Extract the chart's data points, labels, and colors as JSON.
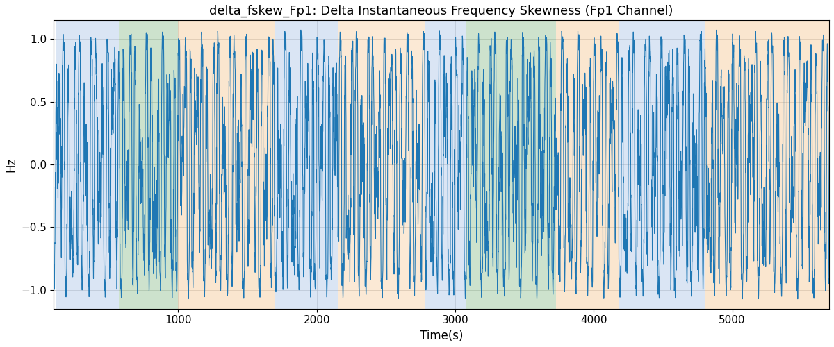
{
  "title": "delta_fskew_Fp1: Delta Instantaneous Frequency Skewness (Fp1 Channel)",
  "xlabel": "Time(s)",
  "ylabel": "Hz",
  "xlim": [
    100,
    5700
  ],
  "ylim": [
    -1.15,
    1.15
  ],
  "line_color": "#1f77b4",
  "line_width": 0.8,
  "background_color": "#ffffff",
  "grid_color": "#b0b0b0",
  "bands": [
    {
      "xmin": 120,
      "xmax": 570,
      "color": "#aec6e8",
      "alpha": 0.45
    },
    {
      "xmin": 570,
      "xmax": 1000,
      "color": "#90c090",
      "alpha": 0.45
    },
    {
      "xmin": 1000,
      "xmax": 1700,
      "color": "#f5c896",
      "alpha": 0.45
    },
    {
      "xmin": 1700,
      "xmax": 2150,
      "color": "#aec6e8",
      "alpha": 0.45
    },
    {
      "xmin": 2150,
      "xmax": 2780,
      "color": "#f5c896",
      "alpha": 0.4
    },
    {
      "xmin": 2780,
      "xmax": 3080,
      "color": "#aec6e8",
      "alpha": 0.45
    },
    {
      "xmin": 3080,
      "xmax": 3730,
      "color": "#90c090",
      "alpha": 0.45
    },
    {
      "xmin": 3730,
      "xmax": 4180,
      "color": "#f5c896",
      "alpha": 0.45
    },
    {
      "xmin": 4180,
      "xmax": 4800,
      "color": "#aec6e8",
      "alpha": 0.45
    },
    {
      "xmin": 4800,
      "xmax": 5700,
      "color": "#f5c896",
      "alpha": 0.45
    }
  ],
  "title_fontsize": 13,
  "axis_fontsize": 12,
  "tick_fontsize": 11,
  "figsize": [
    12.0,
    5.0
  ],
  "dpi": 100
}
